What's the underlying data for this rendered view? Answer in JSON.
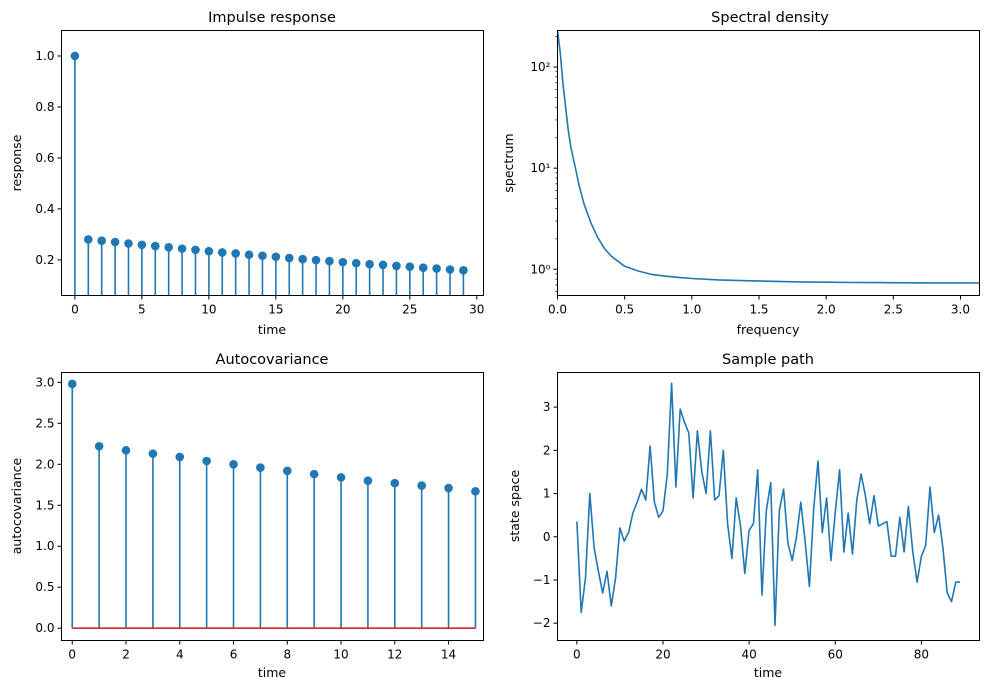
{
  "chart_data": [
    {
      "type": "stem",
      "title": "Impulse response",
      "xlabel": "time",
      "ylabel": "response",
      "xlim": [
        -1,
        30.5
      ],
      "ylim": [
        0.06,
        1.1
      ],
      "xticks": [
        0,
        5,
        10,
        15,
        20,
        25,
        30
      ],
      "xtick_labels": [
        "0",
        "5",
        "10",
        "15",
        "20",
        "25",
        "30"
      ],
      "yticks": [
        0.2,
        0.4,
        0.6,
        0.8,
        1.0
      ],
      "ytick_labels": [
        "0.2",
        "0.4",
        "0.6",
        "0.8",
        "1.0"
      ],
      "color": "#1f77b4",
      "x": [
        0,
        1,
        2,
        3,
        4,
        5,
        6,
        7,
        8,
        9,
        10,
        11,
        12,
        13,
        14,
        15,
        16,
        17,
        18,
        19,
        20,
        21,
        22,
        23,
        24,
        25,
        26,
        27,
        28,
        29
      ],
      "y": [
        1.0,
        0.28,
        0.275,
        0.27,
        0.264,
        0.259,
        0.254,
        0.249,
        0.244,
        0.239,
        0.234,
        0.229,
        0.225,
        0.22,
        0.216,
        0.212,
        0.207,
        0.203,
        0.199,
        0.195,
        0.191,
        0.187,
        0.183,
        0.18,
        0.176,
        0.173,
        0.169,
        0.166,
        0.162,
        0.159
      ],
      "grid": false
    },
    {
      "type": "line",
      "title": "Spectral density",
      "xlabel": "frequency",
      "ylabel": "spectrum",
      "xlim": [
        0,
        3.1416
      ],
      "ylim": [
        0.55,
        230
      ],
      "yscale": "log",
      "xticks": [
        0.0,
        0.5,
        1.0,
        1.5,
        2.0,
        2.5,
        3.0
      ],
      "xtick_labels": [
        "0.0",
        "0.5",
        "1.0",
        "1.5",
        "2.0",
        "2.5",
        "3.0"
      ],
      "yticks": [
        1,
        10,
        100
      ],
      "ytick_labels": [
        "10⁰",
        "10¹",
        "10²"
      ],
      "color": "#1f77b4",
      "x": [
        0.0,
        0.02,
        0.04,
        0.06,
        0.08,
        0.1,
        0.13,
        0.16,
        0.2,
        0.25,
        0.3,
        0.35,
        0.4,
        0.5,
        0.6,
        0.7,
        0.8,
        0.9,
        1.0,
        1.2,
        1.4,
        1.6,
        1.8,
        2.0,
        2.2,
        2.4,
        2.6,
        2.8,
        3.0,
        3.1416
      ],
      "y": [
        230,
        140,
        70,
        40,
        24,
        16,
        10.5,
        6.8,
        4.3,
        2.85,
        2.05,
        1.6,
        1.35,
        1.07,
        0.96,
        0.89,
        0.855,
        0.83,
        0.81,
        0.785,
        0.77,
        0.76,
        0.75,
        0.745,
        0.74,
        0.738,
        0.735,
        0.733,
        0.732,
        0.731
      ],
      "grid": false
    },
    {
      "type": "stem",
      "title": "Autocovariance",
      "xlabel": "time",
      "ylabel": "autocovariance",
      "xlim": [
        -0.4,
        15.3
      ],
      "ylim": [
        -0.15,
        3.12
      ],
      "xticks": [
        0,
        2,
        4,
        6,
        8,
        10,
        12,
        14
      ],
      "xtick_labels": [
        "0",
        "2",
        "4",
        "6",
        "8",
        "10",
        "12",
        "14"
      ],
      "yticks": [
        0.0,
        0.5,
        1.0,
        1.5,
        2.0,
        2.5,
        3.0
      ],
      "ytick_labels": [
        "0.0",
        "0.5",
        "1.0",
        "1.5",
        "2.0",
        "2.5",
        "3.0"
      ],
      "color": "#1f77b4",
      "baseline_color": "#d62728",
      "x": [
        0,
        1,
        2,
        3,
        4,
        5,
        6,
        7,
        8,
        9,
        10,
        11,
        12,
        13,
        14,
        15
      ],
      "y": [
        2.98,
        2.22,
        2.17,
        2.13,
        2.09,
        2.04,
        2.0,
        1.96,
        1.92,
        1.88,
        1.84,
        1.8,
        1.77,
        1.74,
        1.71,
        1.67
      ],
      "grid": false
    },
    {
      "type": "line",
      "title": "Sample path",
      "xlabel": "time",
      "ylabel": "state space",
      "xlim": [
        -4.5,
        93.5
      ],
      "ylim": [
        -2.4,
        3.8
      ],
      "xticks": [
        0,
        20,
        40,
        60,
        80
      ],
      "xtick_labels": [
        "0",
        "20",
        "40",
        "60",
        "80"
      ],
      "yticks": [
        -2,
        -1,
        0,
        1,
        2,
        3
      ],
      "ytick_labels": [
        "−2",
        "−1",
        "0",
        "1",
        "2",
        "3"
      ],
      "color": "#1f77b4",
      "x": [
        0,
        1,
        2,
        3,
        4,
        5,
        6,
        7,
        8,
        9,
        10,
        11,
        12,
        13,
        14,
        15,
        16,
        17,
        18,
        19,
        20,
        21,
        22,
        23,
        24,
        25,
        26,
        27,
        28,
        29,
        30,
        31,
        32,
        33,
        34,
        35,
        36,
        37,
        38,
        39,
        40,
        41,
        42,
        43,
        44,
        45,
        46,
        47,
        48,
        49,
        50,
        51,
        52,
        53,
        54,
        55,
        56,
        57,
        58,
        59,
        60,
        61,
        62,
        63,
        64,
        65,
        66,
        67,
        68,
        69,
        70,
        71,
        72,
        73,
        74,
        75,
        76,
        77,
        78,
        79,
        80,
        81,
        82,
        83,
        84,
        85,
        86,
        87,
        88,
        89
      ],
      "y": [
        0.35,
        -1.75,
        -0.95,
        1.0,
        -0.25,
        -0.8,
        -1.3,
        -0.8,
        -1.6,
        -0.95,
        0.2,
        -0.1,
        0.1,
        0.55,
        0.8,
        1.1,
        0.85,
        2.1,
        0.8,
        0.45,
        0.6,
        1.45,
        3.55,
        1.15,
        2.95,
        2.65,
        2.4,
        0.9,
        2.45,
        1.5,
        1.0,
        2.45,
        0.85,
        0.95,
        2.0,
        0.3,
        -0.5,
        0.9,
        0.25,
        -0.85,
        0.15,
        0.3,
        1.55,
        -1.35,
        0.6,
        1.25,
        -2.05,
        0.6,
        1.1,
        -0.15,
        -0.55,
        0.0,
        0.8,
        -0.1,
        -1.15,
        0.65,
        1.75,
        0.1,
        0.9,
        -0.55,
        0.55,
        1.55,
        -0.35,
        0.55,
        -0.4,
        0.85,
        1.45,
        0.95,
        0.3,
        0.95,
        0.25,
        0.3,
        0.35,
        -0.45,
        -0.45,
        0.45,
        -0.35,
        0.7,
        -0.35,
        -1.05,
        -0.45,
        -0.2,
        1.15,
        0.1,
        0.5,
        -0.25,
        -1.3,
        -1.5,
        -1.05,
        -1.05
      ],
      "grid": false
    }
  ]
}
